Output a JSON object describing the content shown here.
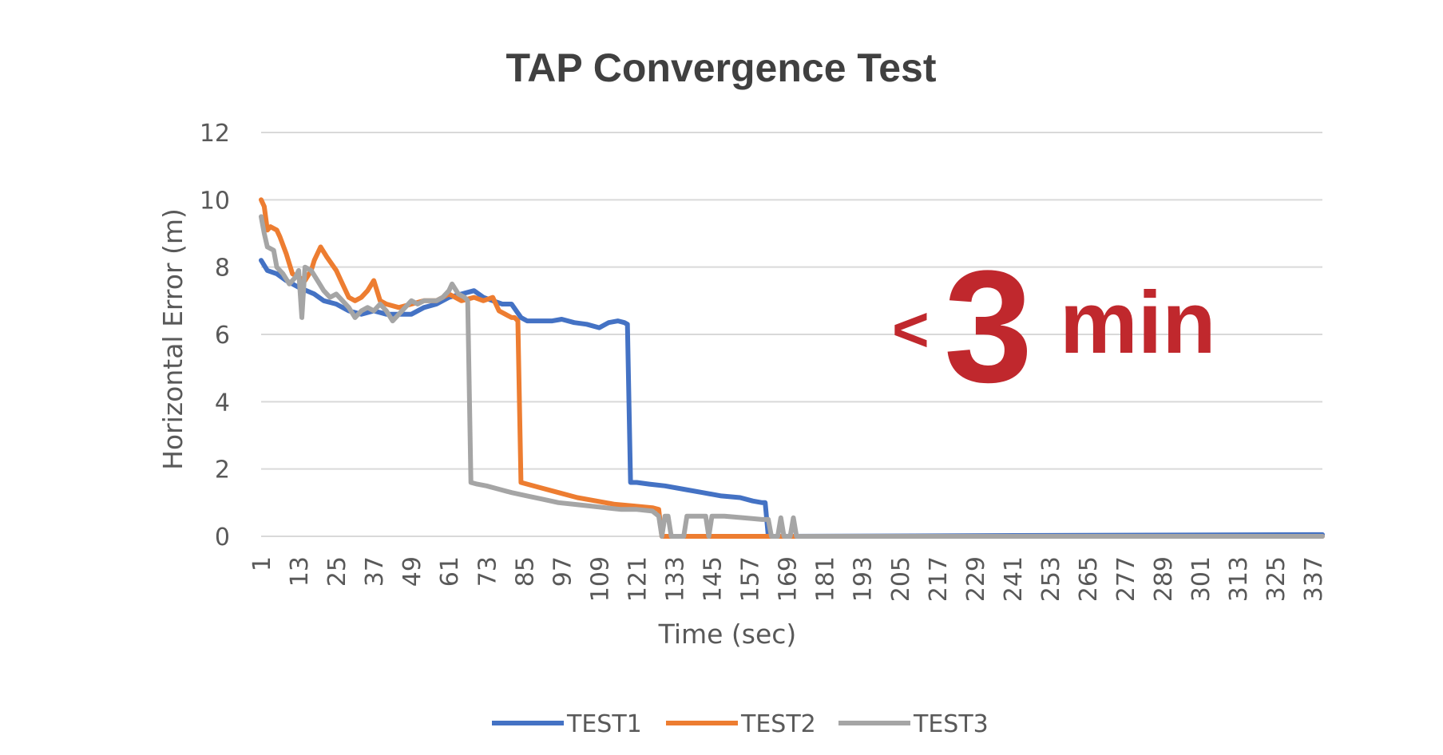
{
  "chart_data": {
    "type": "line",
    "title": "TAP Convergence Test",
    "xlabel": "Time (sec)",
    "ylabel": "Horizontal Error (m)",
    "ylim": [
      0,
      12
    ],
    "yticks": [
      "0",
      "2",
      "4",
      "6",
      "8",
      "10",
      "12"
    ],
    "xlim": [
      1,
      340
    ],
    "xticks": [
      "1",
      "13",
      "25",
      "37",
      "49",
      "61",
      "73",
      "85",
      "97",
      "109",
      "121",
      "133",
      "145",
      "157",
      "169",
      "181",
      "193",
      "205",
      "217",
      "229",
      "241",
      "253",
      "265",
      "277",
      "289",
      "301",
      "313",
      "325",
      "337"
    ],
    "grid": true,
    "legend_position": "bottom",
    "annotation": {
      "prefix": "<",
      "number": "3",
      "unit": "min",
      "color": "#c0282d"
    },
    "series": [
      {
        "name": "TEST1",
        "color": "#4472c4",
        "points": [
          [
            1,
            8.2
          ],
          [
            3,
            7.9
          ],
          [
            6,
            7.8
          ],
          [
            9,
            7.6
          ],
          [
            13,
            7.4
          ],
          [
            18,
            7.2
          ],
          [
            21,
            7.0
          ],
          [
            25,
            6.9
          ],
          [
            29,
            6.7
          ],
          [
            33,
            6.6
          ],
          [
            37,
            6.7
          ],
          [
            41,
            6.6
          ],
          [
            45,
            6.6
          ],
          [
            49,
            6.6
          ],
          [
            53,
            6.8
          ],
          [
            57,
            6.9
          ],
          [
            61,
            7.1
          ],
          [
            65,
            7.2
          ],
          [
            69,
            7.3
          ],
          [
            72,
            7.1
          ],
          [
            75,
            7.0
          ],
          [
            78,
            6.9
          ],
          [
            81,
            6.9
          ],
          [
            84,
            6.5
          ],
          [
            86,
            6.4
          ],
          [
            90,
            6.4
          ],
          [
            94,
            6.4
          ],
          [
            97,
            6.45
          ],
          [
            101,
            6.35
          ],
          [
            105,
            6.3
          ],
          [
            109,
            6.2
          ],
          [
            112,
            6.35
          ],
          [
            115,
            6.4
          ],
          [
            117,
            6.35
          ],
          [
            118,
            6.3
          ],
          [
            119,
            1.6
          ],
          [
            121,
            1.6
          ],
          [
            125,
            1.55
          ],
          [
            130,
            1.5
          ],
          [
            136,
            1.4
          ],
          [
            142,
            1.3
          ],
          [
            148,
            1.2
          ],
          [
            154,
            1.15
          ],
          [
            158,
            1.05
          ],
          [
            161,
            1.0
          ],
          [
            162,
            1.0
          ],
          [
            163,
            0.0
          ],
          [
            337,
            0.05
          ],
          [
            340,
            0.05
          ]
        ]
      },
      {
        "name": "TEST2",
        "color": "#ed7d31",
        "points": [
          [
            1,
            10.0
          ],
          [
            2,
            9.8
          ],
          [
            3,
            9.1
          ],
          [
            4,
            9.2
          ],
          [
            6,
            9.1
          ],
          [
            7,
            8.9
          ],
          [
            9,
            8.4
          ],
          [
            11,
            7.8
          ],
          [
            13,
            7.7
          ],
          [
            15,
            7.6
          ],
          [
            17,
            7.9
          ],
          [
            18,
            8.2
          ],
          [
            20,
            8.6
          ],
          [
            22,
            8.3
          ],
          [
            25,
            7.9
          ],
          [
            27,
            7.5
          ],
          [
            29,
            7.1
          ],
          [
            31,
            7.0
          ],
          [
            33,
            7.1
          ],
          [
            35,
            7.3
          ],
          [
            37,
            7.6
          ],
          [
            39,
            7.0
          ],
          [
            41,
            6.9
          ],
          [
            45,
            6.8
          ],
          [
            49,
            6.9
          ],
          [
            53,
            7.0
          ],
          [
            57,
            7.0
          ],
          [
            61,
            7.2
          ],
          [
            65,
            7.0
          ],
          [
            69,
            7.1
          ],
          [
            72,
            7.0
          ],
          [
            75,
            7.1
          ],
          [
            77,
            6.7
          ],
          [
            79,
            6.6
          ],
          [
            81,
            6.5
          ],
          [
            82,
            6.5
          ],
          [
            83,
            6.4
          ],
          [
            84,
            1.6
          ],
          [
            86,
            1.55
          ],
          [
            90,
            1.45
          ],
          [
            96,
            1.3
          ],
          [
            102,
            1.15
          ],
          [
            108,
            1.05
          ],
          [
            114,
            0.95
          ],
          [
            120,
            0.9
          ],
          [
            126,
            0.85
          ],
          [
            128,
            0.8
          ],
          [
            129,
            0.0
          ],
          [
            336,
            0.0
          ],
          [
            340,
            0.0
          ]
        ]
      },
      {
        "name": "TEST3",
        "color": "#a5a5a5",
        "points": [
          [
            1,
            9.5
          ],
          [
            2,
            9.0
          ],
          [
            3,
            8.6
          ],
          [
            5,
            8.5
          ],
          [
            6,
            8.0
          ],
          [
            8,
            7.8
          ],
          [
            10,
            7.5
          ],
          [
            12,
            7.7
          ],
          [
            13,
            7.9
          ],
          [
            14,
            6.5
          ],
          [
            15,
            8.0
          ],
          [
            17,
            7.9
          ],
          [
            19,
            7.6
          ],
          [
            21,
            7.3
          ],
          [
            23,
            7.1
          ],
          [
            25,
            7.2
          ],
          [
            27,
            7.0
          ],
          [
            29,
            6.8
          ],
          [
            31,
            6.5
          ],
          [
            33,
            6.7
          ],
          [
            35,
            6.8
          ],
          [
            37,
            6.7
          ],
          [
            39,
            6.9
          ],
          [
            41,
            6.7
          ],
          [
            43,
            6.4
          ],
          [
            45,
            6.6
          ],
          [
            47,
            6.8
          ],
          [
            49,
            7.0
          ],
          [
            51,
            6.9
          ],
          [
            53,
            7.0
          ],
          [
            57,
            7.0
          ],
          [
            59,
            7.1
          ],
          [
            61,
            7.3
          ],
          [
            62,
            7.5
          ],
          [
            64,
            7.2
          ],
          [
            66,
            7.1
          ],
          [
            67,
            7.0
          ],
          [
            68,
            1.6
          ],
          [
            70,
            1.55
          ],
          [
            73,
            1.5
          ],
          [
            77,
            1.4
          ],
          [
            81,
            1.3
          ],
          [
            86,
            1.2
          ],
          [
            91,
            1.1
          ],
          [
            96,
            1.0
          ],
          [
            101,
            0.95
          ],
          [
            106,
            0.9
          ],
          [
            111,
            0.85
          ],
          [
            116,
            0.8
          ],
          [
            121,
            0.8
          ],
          [
            126,
            0.75
          ],
          [
            128,
            0.6
          ],
          [
            129,
            0.0
          ],
          [
            130,
            0.6
          ],
          [
            131,
            0.6
          ],
          [
            132,
            0.0
          ],
          [
            136,
            0.0
          ],
          [
            137,
            0.6
          ],
          [
            141,
            0.6
          ],
          [
            143,
            0.6
          ],
          [
            144,
            0.0
          ],
          [
            145,
            0.6
          ],
          [
            149,
            0.6
          ],
          [
            155,
            0.55
          ],
          [
            161,
            0.5
          ],
          [
            163,
            0.5
          ],
          [
            164,
            0.0
          ],
          [
            166,
            0.0
          ],
          [
            167,
            0.55
          ],
          [
            168,
            0.0
          ],
          [
            170,
            0.0
          ],
          [
            171,
            0.55
          ],
          [
            172,
            0.0
          ],
          [
            340,
            0.0
          ]
        ]
      }
    ]
  }
}
